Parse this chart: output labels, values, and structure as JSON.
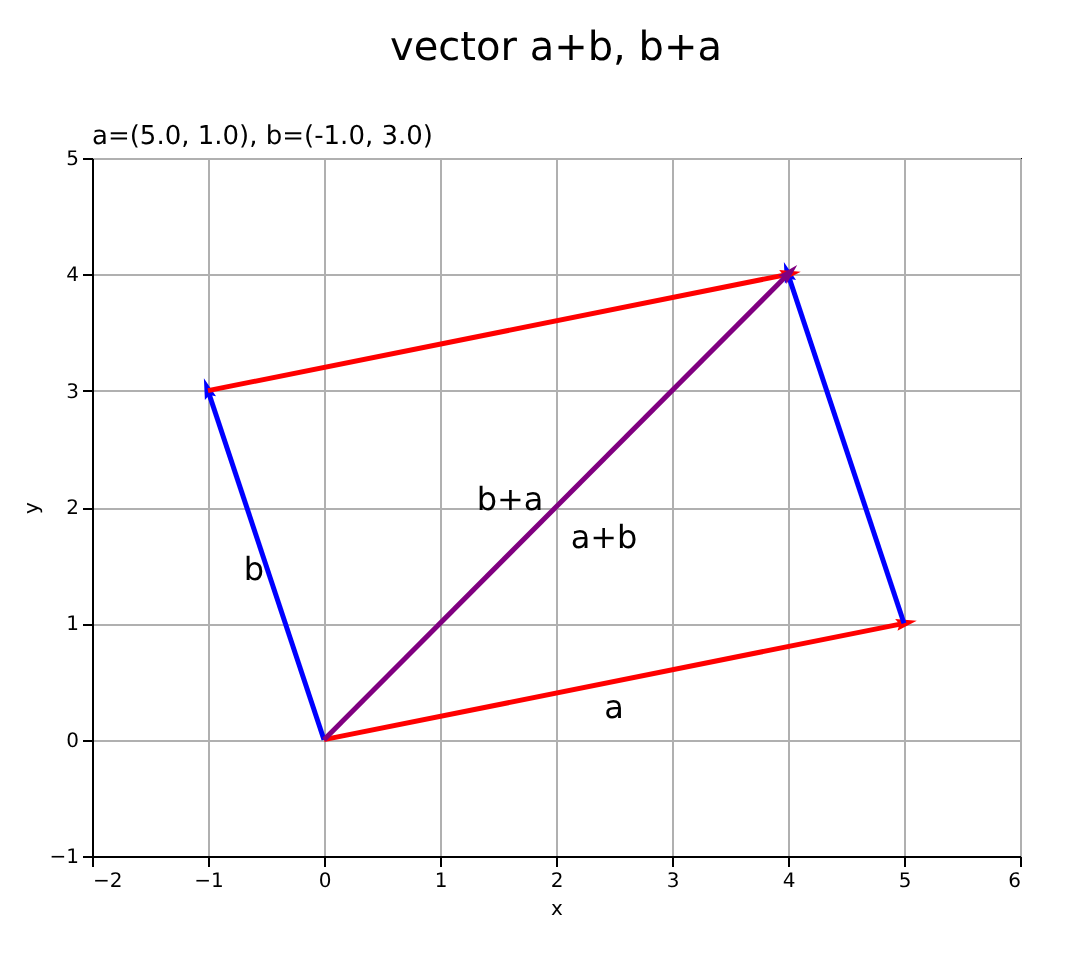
{
  "chart_data": {
    "type": "line",
    "title": "vector a+b, b+a",
    "subtitle": "a=(5.0, 1.0), b=(-1.0, 3.0)",
    "xlabel": "x",
    "ylabel": "y",
    "series": [
      {
        "color": "#ff0000",
        "x": [
          0,
          5
        ],
        "values": [
          0,
          1
        ]
      },
      {
        "color": "#0000ff",
        "x": [
          5,
          4
        ],
        "values": [
          1,
          4
        ]
      },
      {
        "color": "#0000ff",
        "x": [
          0,
          -1
        ],
        "values": [
          0,
          3
        ]
      },
      {
        "color": "#ff0000",
        "x": [
          -1,
          4
        ],
        "values": [
          3,
          4
        ]
      },
      {
        "color": "#800080",
        "x": [
          0,
          4
        ],
        "values": [
          0,
          4
        ]
      }
    ],
    "annotations": [
      "a",
      "b",
      "b+a",
      "a+b"
    ],
    "xlim": [
      -2,
      6
    ],
    "ylim": [
      -1,
      5
    ],
    "xticks": [
      -2,
      -1,
      0,
      1,
      2,
      3,
      4,
      5,
      6
    ],
    "yticks": [
      -1,
      0,
      1,
      2,
      3,
      4,
      5
    ],
    "grid": true,
    "legend": false,
    "line_style": "solid"
  }
}
